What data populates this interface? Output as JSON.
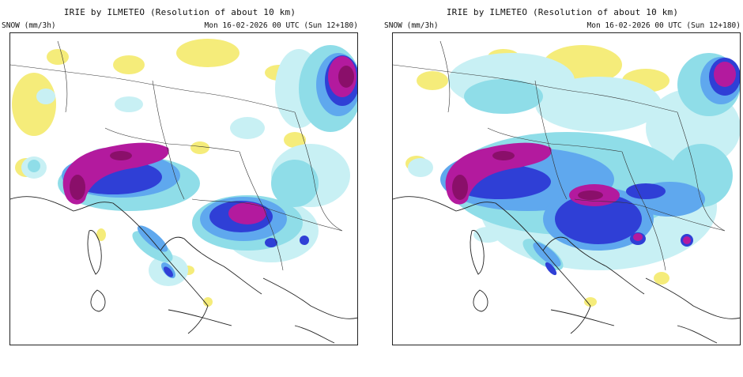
{
  "panels": [
    {
      "title": "IRIE by ILMETEO (Resolution of about 10 km)",
      "units": "SNOW (mm/3h)",
      "datetime": "Mon 16-02-2026 00 UTC (Sun 12+180)"
    },
    {
      "title": "IRIE by ILMETEO (Resolution of about 10 km)",
      "units": "SNOW (mm/3h)",
      "datetime": "Mon 16-02-2026 00 UTC (Sun 12+180)"
    }
  ],
  "colors": {
    "yellow": "#f5ec7a",
    "pale_cyan": "#c8f0f4",
    "cyan": "#8fdde8",
    "light_blue": "#5fa8ee",
    "blue": "#2f3fd6",
    "magenta": "#b31a9e",
    "dark_magenta": "#8a0f6a",
    "coast": "#222222"
  }
}
